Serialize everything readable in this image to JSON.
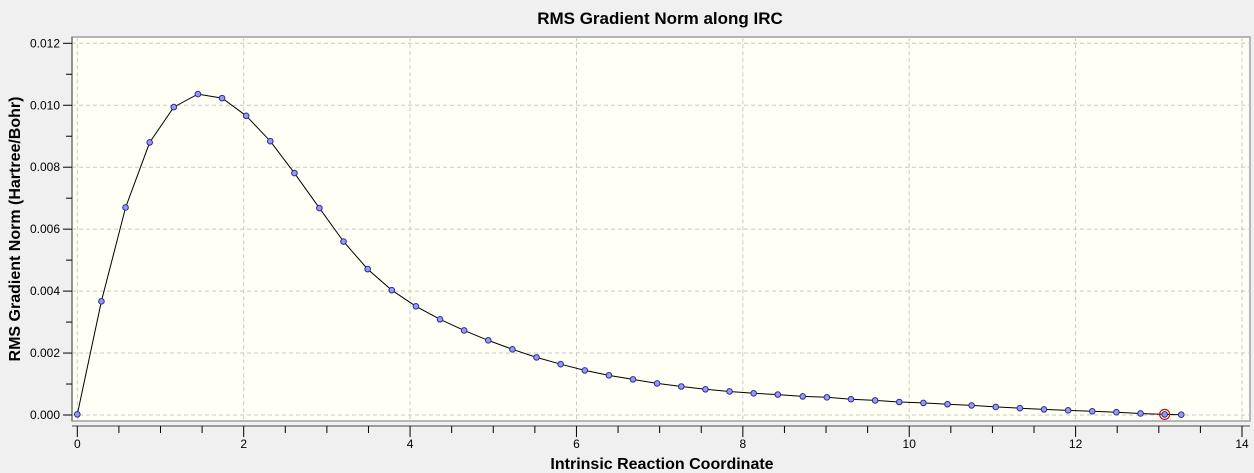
{
  "chart_data": {
    "type": "line",
    "title": "RMS Gradient Norm along IRC",
    "xlabel": "Intrinsic Reaction Coordinate",
    "ylabel": "RMS Gradient Norm (Hartree/Bohr)",
    "xlim": [
      0,
      14
    ],
    "ylim": [
      0,
      0.012
    ],
    "xticks": [
      "0",
      "2",
      "4",
      "6",
      "8",
      "10",
      "12",
      "14"
    ],
    "yticks": [
      "0.000",
      "0.002",
      "0.004",
      "0.006",
      "0.008",
      "0.010",
      "0.012"
    ],
    "grid": true,
    "markers": true,
    "highlighted_point_index": 45,
    "colors": {
      "background": "#f0f0f0",
      "plot_background": "#fffff5",
      "line": "#000000",
      "marker_fill": "#9a9af0",
      "marker_stroke": "#2a2a9a",
      "highlight": "#d01010",
      "grid": "#c8c8c8"
    },
    "x": [
      0,
      0.29,
      0.58,
      0.87,
      1.16,
      1.45,
      1.74,
      2.03,
      2.32,
      2.61,
      2.91,
      3.2,
      3.49,
      3.78,
      4.07,
      4.36,
      4.65,
      4.94,
      5.23,
      5.52,
      5.81,
      6.1,
      6.39,
      6.68,
      6.97,
      7.26,
      7.55,
      7.84,
      8.13,
      8.42,
      8.72,
      9.01,
      9.3,
      9.59,
      9.88,
      10.17,
      10.46,
      10.75,
      11.04,
      11.33,
      11.62,
      11.91,
      12.2,
      12.49,
      12.78,
      13.07,
      13.27
    ],
    "y": [
      2e-05,
      0.00367,
      0.0067,
      0.0088,
      0.00994,
      0.01036,
      0.01023,
      0.00966,
      0.00884,
      0.00781,
      0.00668,
      0.0056,
      0.00471,
      0.00403,
      0.00351,
      0.00309,
      0.00273,
      0.00241,
      0.00212,
      0.00186,
      0.00164,
      0.00144,
      0.00128,
      0.00115,
      0.00102,
      0.00092,
      0.00083,
      0.00076,
      0.0007,
      0.00066,
      0.0006,
      0.00057,
      0.00051,
      0.00047,
      0.00042,
      0.00039,
      0.00035,
      0.00031,
      0.00026,
      0.00022,
      0.00018,
      0.00015,
      0.00012,
      9e-05,
      5e-05,
      2e-05,
      1e-05
    ]
  }
}
